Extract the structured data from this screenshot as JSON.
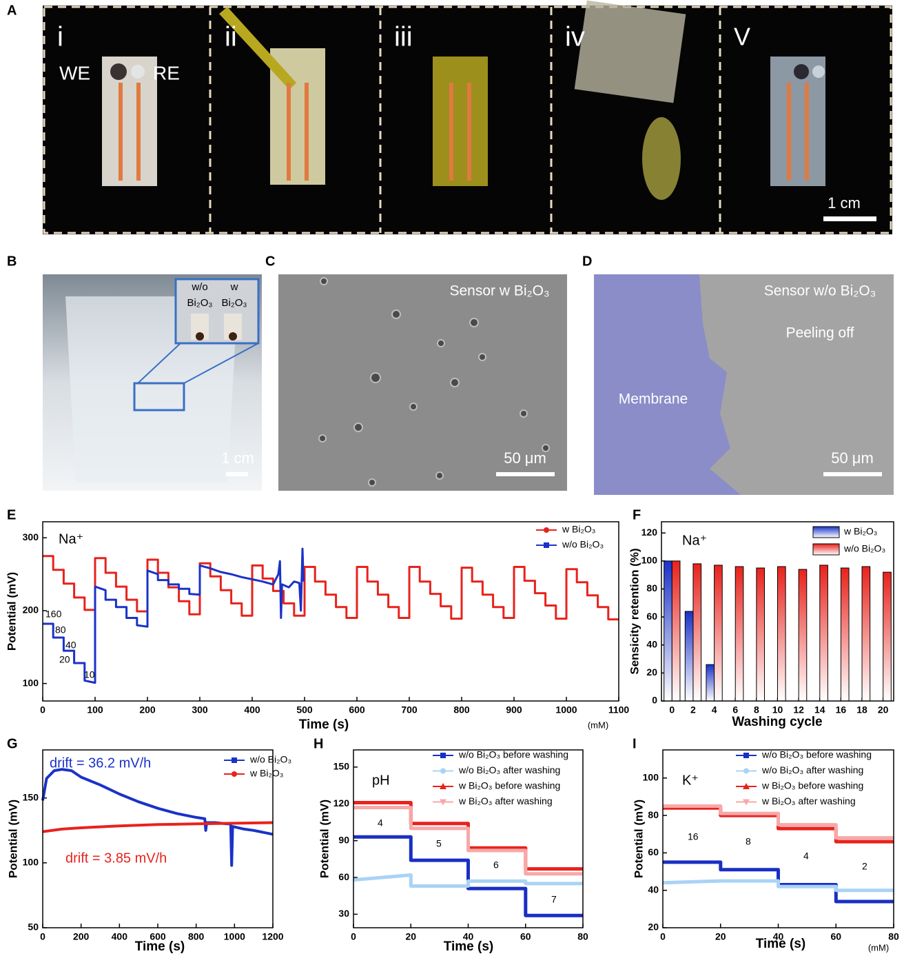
{
  "photos": [
    {
      "label": "A",
      "frames": [
        "i",
        "ii",
        "iii",
        "iv",
        "V"
      ],
      "electrodes": [
        "WE",
        "RE"
      ],
      "scale_bar": "1 cm"
    },
    {
      "label": "B",
      "inset": [
        "w/o",
        "Bi₂O₃",
        "w",
        "Bi₂O₃"
      ],
      "scale_bar": "1 cm"
    },
    {
      "label": "C",
      "caption": "Sensor w Bi₂O₃",
      "scale_bar": "50 μm"
    },
    {
      "label": "D",
      "caption": "Sensor w/o Bi₂O₃",
      "notes": [
        "Peeling off",
        "Membrane"
      ],
      "scale_bar": "50 μm"
    }
  ],
  "chart_data": [
    {
      "label": "E",
      "type": "line",
      "xlabel": "Time (s)",
      "ylabel": "Potential (mV)",
      "unit": "(mM)",
      "annotations": [
        "Na⁺",
        "160",
        "80",
        "40",
        "20",
        "10"
      ],
      "xlim": [
        0,
        1100
      ],
      "ylim": [
        76,
        322
      ],
      "xticks": [
        0,
        100,
        200,
        300,
        400,
        500,
        600,
        700,
        800,
        900,
        1000,
        1100
      ],
      "yticks": [
        100,
        200,
        300
      ],
      "series": [
        {
          "name": "w Bi₂O₃",
          "color": "#e8221c",
          "marker": "circle",
          "x": [
            0,
            20,
            20,
            40,
            40,
            60,
            60,
            80,
            80,
            100,
            100,
            120,
            120,
            140,
            140,
            160,
            160,
            180,
            180,
            200,
            200,
            220,
            220,
            240,
            240,
            260,
            260,
            280,
            280,
            300,
            300,
            320,
            320,
            340,
            340,
            360,
            360,
            380,
            380,
            400,
            400,
            420,
            420,
            440,
            440,
            460,
            460,
            480,
            480,
            500,
            500,
            520,
            520,
            540,
            540,
            560,
            560,
            580,
            580,
            600,
            600,
            620,
            620,
            640,
            640,
            660,
            660,
            680,
            680,
            700,
            700,
            720,
            720,
            740,
            740,
            760,
            760,
            780,
            780,
            800,
            800,
            820,
            820,
            840,
            840,
            860,
            860,
            880,
            880,
            900,
            900,
            920,
            920,
            940,
            940,
            960,
            960,
            980,
            980,
            1000,
            1000,
            1020,
            1020,
            1040,
            1040,
            1060,
            1060,
            1080,
            1080,
            1100
          ],
          "values": [
            275,
            275,
            256,
            256,
            237,
            237,
            218,
            218,
            201,
            201,
            272,
            272,
            252,
            252,
            233,
            233,
            215,
            215,
            199,
            199,
            270,
            270,
            252,
            252,
            232,
            232,
            213,
            213,
            195,
            195,
            265,
            265,
            247,
            247,
            228,
            228,
            210,
            210,
            193,
            193,
            262,
            262,
            244,
            244,
            227,
            227,
            210,
            210,
            193,
            193,
            260,
            260,
            240,
            240,
            222,
            222,
            205,
            205,
            190,
            190,
            260,
            260,
            240,
            240,
            222,
            222,
            205,
            205,
            190,
            190,
            260,
            260,
            240,
            240,
            223,
            223,
            206,
            206,
            189,
            189,
            259,
            259,
            240,
            240,
            222,
            222,
            205,
            205,
            190,
            190,
            260,
            260,
            241,
            241,
            224,
            224,
            207,
            207,
            189,
            189,
            257,
            257,
            239,
            239,
            221,
            221,
            205,
            205,
            188,
            188
          ]
        },
        {
          "name": "w/o Bi₂O₃",
          "color": "#1a32c8",
          "marker": "square",
          "x": [
            0,
            20,
            20,
            40,
            40,
            60,
            60,
            80,
            80,
            100,
            100,
            120,
            120,
            140,
            140,
            160,
            160,
            180,
            180,
            200,
            200,
            220,
            220,
            240,
            240,
            260,
            260,
            280,
            280,
            300,
            300,
            320,
            340,
            360,
            380,
            400,
            420,
            440,
            450,
            453,
            455,
            457,
            470,
            480,
            490,
            493,
            496,
            498
          ],
          "values": [
            182,
            182,
            163,
            163,
            145,
            145,
            128,
            128,
            104,
            101,
            233,
            228,
            215,
            215,
            205,
            205,
            190,
            190,
            180,
            178,
            255,
            250,
            242,
            242,
            236,
            236,
            230,
            230,
            223,
            222,
            262,
            258,
            253,
            250,
            246,
            243,
            240,
            236,
            250,
            268,
            190,
            236,
            232,
            240,
            238,
            200,
            285,
            240
          ]
        }
      ]
    },
    {
      "label": "F",
      "type": "bar",
      "xlabel": "Washing cycle",
      "ylabel": "Sensicity retention (%)",
      "annotations": [
        "Na⁺"
      ],
      "categories": [
        0,
        2,
        4,
        6,
        8,
        10,
        12,
        14,
        16,
        18,
        20
      ],
      "ylim": [
        0,
        128
      ],
      "yticks": [
        0,
        20,
        40,
        60,
        80,
        100,
        120
      ],
      "series": [
        {
          "name": "w Bi₂O₃",
          "color": "#1a32c8",
          "values": [
            100,
            64,
            26,
            null,
            null,
            null,
            null,
            null,
            null,
            null,
            null
          ]
        },
        {
          "name": "w/o Bi₂O₃",
          "color": "#e8221c",
          "values": [
            100,
            98,
            97,
            96,
            95,
            96,
            94,
            97,
            95,
            96,
            92
          ]
        }
      ]
    },
    {
      "label": "G",
      "type": "line",
      "xlabel": "Time (s)",
      "ylabel": "Potential (mV)",
      "annotations": [
        "drift = 36.2 mV/h",
        "drift = 3.85 mV/h"
      ],
      "xlim": [
        0,
        1200
      ],
      "ylim": [
        50,
        187
      ],
      "xticks": [
        0,
        200,
        400,
        600,
        800,
        1000,
        1200
      ],
      "yticks": [
        50,
        100,
        150
      ],
      "series": [
        {
          "name": "w/o Bi₂O₃",
          "color": "#1a32c8",
          "marker": "square",
          "x": [
            0,
            20,
            60,
            100,
            150,
            200,
            300,
            400,
            500,
            600,
            700,
            800,
            845,
            850,
            855,
            900,
            960,
            980,
            985,
            990,
            1050,
            1100,
            1200
          ],
          "values": [
            148,
            165,
            171,
            172,
            171,
            166,
            160,
            153,
            147,
            142,
            138,
            135,
            134,
            125,
            131,
            131,
            130,
            130,
            98,
            128,
            126,
            125,
            122
          ]
        },
        {
          "name": "w Bi₂O₃",
          "color": "#e8221c",
          "marker": "circle",
          "x": [
            0,
            100,
            200,
            400,
            600,
            800,
            1000,
            1200
          ],
          "values": [
            124,
            126,
            127,
            128.5,
            129.5,
            130,
            130.5,
            131
          ]
        }
      ]
    },
    {
      "label": "H",
      "type": "line",
      "xlabel": "Time (s)",
      "ylabel": "Potential (mV)",
      "annotations": [
        "pH",
        "4",
        "5",
        "6",
        "7"
      ],
      "xlim": [
        0,
        80
      ],
      "ylim": [
        19,
        164
      ],
      "xticks": [
        0,
        20,
        40,
        60,
        80
      ],
      "yticks": [
        30,
        60,
        90,
        120,
        150
      ],
      "series": [
        {
          "name": "w/o Bi₂O₃ before washing",
          "color": "#1a2fc4",
          "marker": "square",
          "x": [
            0,
            20,
            20,
            40,
            40,
            60,
            60,
            80
          ],
          "values": [
            93,
            93,
            74,
            74,
            51,
            51,
            29,
            29
          ]
        },
        {
          "name": "w/o Bi₂O₃ after washing",
          "color": "#a9d3f5",
          "marker": "circle",
          "x": [
            0,
            20,
            20,
            40,
            40,
            60,
            60,
            80
          ],
          "values": [
            58,
            62,
            53,
            53,
            57,
            57,
            55,
            55
          ]
        },
        {
          "name": "w Bi₂O₃ before washing",
          "color": "#e8221c",
          "marker": "triangle",
          "x": [
            0,
            20,
            20,
            40,
            40,
            60,
            60,
            80
          ],
          "values": [
            121,
            121,
            104,
            104,
            84,
            84,
            67,
            67
          ]
        },
        {
          "name": "w Bi₂O₃ after washing",
          "color": "#f7a8a8",
          "marker": "down",
          "x": [
            0,
            20,
            20,
            40,
            40,
            60,
            60,
            80
          ],
          "values": [
            117,
            117,
            100,
            100,
            82,
            82,
            63,
            63
          ]
        }
      ]
    },
    {
      "label": "I",
      "type": "line",
      "xlabel": "Time (s)",
      "ylabel": "Potential (mV)",
      "unit": "(mM)",
      "annotations": [
        "K⁺",
        "16",
        "8",
        "4",
        "2"
      ],
      "xlim": [
        0,
        80
      ],
      "ylim": [
        20,
        115
      ],
      "xticks": [
        0,
        20,
        40,
        60,
        80
      ],
      "yticks": [
        20,
        40,
        60,
        80,
        100
      ],
      "series": [
        {
          "name": "w/o Bi₂O₃ before washing",
          "color": "#1a2fc4",
          "marker": "square",
          "x": [
            0,
            20,
            20,
            40,
            40,
            60,
            60,
            80
          ],
          "values": [
            55,
            55,
            51,
            51,
            43,
            43,
            34,
            34
          ]
        },
        {
          "name": "w/o Bi₂O₃ after washing",
          "color": "#a9d3f5",
          "marker": "circle",
          "x": [
            0,
            20,
            20,
            40,
            40,
            60,
            60,
            80
          ],
          "values": [
            44,
            45,
            45,
            45,
            42,
            42,
            40,
            40
          ]
        },
        {
          "name": "w Bi₂O₃ before washing",
          "color": "#e8221c",
          "marker": "triangle",
          "x": [
            0,
            20,
            20,
            40,
            40,
            60,
            60,
            80
          ],
          "values": [
            84,
            84,
            80,
            80,
            73,
            73,
            66,
            66
          ]
        },
        {
          "name": "w Bi₂O₃ after washing",
          "color": "#f7a8a8",
          "marker": "down",
          "x": [
            0,
            20,
            20,
            40,
            40,
            60,
            60,
            80
          ],
          "values": [
            85,
            85,
            81,
            81,
            75,
            75,
            68,
            68
          ]
        }
      ]
    }
  ]
}
